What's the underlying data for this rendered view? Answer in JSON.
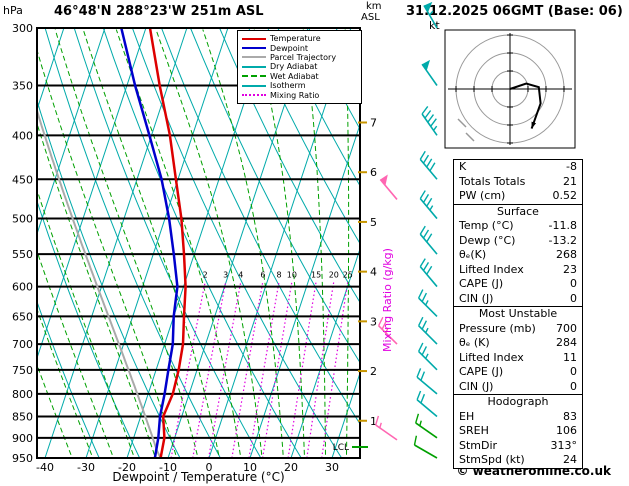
{
  "header": {
    "title": "46°48'N 288°23'W 251m ASL",
    "datetime": "31.12.2025 06GMT (Base: 06)",
    "pressure_unit": "hPa",
    "altitude_unit_line1": "km",
    "altitude_unit_line2": "ASL",
    "hodograph_unit": "kt"
  },
  "footer": {
    "copyright": "© weatheronline.co.uk"
  },
  "legend": {
    "items": [
      {
        "label": "Temperature",
        "color": "#DD0000",
        "style": "solid"
      },
      {
        "label": "Dewpoint",
        "color": "#0000CC",
        "style": "solid"
      },
      {
        "label": "Parcel Trajectory",
        "color": "#AAAAAA",
        "style": "solid"
      },
      {
        "label": "Dry Adiabat",
        "color": "#00AAAA",
        "style": "solid"
      },
      {
        "label": "Wet Adiabat",
        "color": "#00A000",
        "style": "dashed"
      },
      {
        "label": "Isotherm",
        "color": "#00AAAA",
        "style": "solid"
      },
      {
        "label": "Mixing Ratio",
        "color": "#E000E0",
        "style": "dotted"
      }
    ]
  },
  "stats_table": {
    "top_rows": [
      {
        "label": "K",
        "value": "-8"
      },
      {
        "label": "Totals Totals",
        "value": "21"
      },
      {
        "label": "PW (cm)",
        "value": "0.52"
      }
    ],
    "sections": [
      {
        "header": "Surface",
        "rows": [
          {
            "label": "Temp (°C)",
            "value": "-11.8"
          },
          {
            "label": "Dewp (°C)",
            "value": "-13.2"
          },
          {
            "label": "θₑ(K)",
            "value": "268"
          },
          {
            "label": "Lifted Index",
            "value": "23"
          },
          {
            "label": "CAPE (J)",
            "value": "0"
          },
          {
            "label": "CIN (J)",
            "value": "0"
          }
        ]
      },
      {
        "header": "Most Unstable",
        "rows": [
          {
            "label": "Pressure (mb)",
            "value": "700"
          },
          {
            "label": "θₑ (K)",
            "value": "284"
          },
          {
            "label": "Lifted Index",
            "value": "11"
          },
          {
            "label": "CAPE (J)",
            "value": "0"
          },
          {
            "label": "CIN (J)",
            "value": "0"
          }
        ]
      },
      {
        "header": "Hodograph",
        "rows": [
          {
            "label": "EH",
            "value": "83"
          },
          {
            "label": "SREH",
            "value": "106"
          },
          {
            "label": "StmDir",
            "value": "313°"
          },
          {
            "label": "StmSpd (kt)",
            "value": "24"
          }
        ]
      }
    ]
  },
  "chart_data": {
    "type": "skewt",
    "xlabel": "Dewpoint / Temperature (°C)",
    "mixing_ratio_axis_label": "Mixing Ratio (g/kg)",
    "lcl_label": "LCL",
    "y_scale": "log-pressure",
    "pressure_range_hpa": [
      300,
      950
    ],
    "temp_axis_range_c": [
      -40,
      30
    ],
    "station_elevation_km": 0.251,
    "pressure_ticks_hpa": [
      300,
      350,
      400,
      450,
      500,
      550,
      600,
      650,
      700,
      750,
      800,
      850,
      900,
      950
    ],
    "temp_ticks_c": [
      -40,
      -30,
      -20,
      -10,
      0,
      10,
      20,
      30
    ],
    "km_ticks": [
      7,
      6,
      5,
      4,
      3,
      2,
      1
    ],
    "mixing_ratio_lines_gkg": [
      2,
      3,
      4,
      6,
      8,
      10,
      15,
      20,
      25
    ],
    "colors": {
      "temperature": "#DD0000",
      "dewpoint": "#0000CC",
      "parcel": "#AAAAAA",
      "dry_adiabat": "#00AAAA",
      "wet_adiabat": "#00A000",
      "isotherm": "#00AAAA",
      "mixing_ratio": "#E000E0",
      "km_tick": "#C89600",
      "lcl_tick": "#00A000"
    },
    "sounding": {
      "pressure_hpa": [
        950,
        900,
        850,
        800,
        750,
        700,
        650,
        600,
        550,
        500,
        450,
        400,
        350,
        300
      ],
      "temperature_c": [
        -11.8,
        -12.5,
        -14.5,
        -14.0,
        -14.5,
        -15.5,
        -17.5,
        -19.5,
        -22.5,
        -26.0,
        -30.5,
        -35.5,
        -42.0,
        -49.0
      ],
      "dewpoint_c": [
        -13.2,
        -14.0,
        -15.3,
        -16.0,
        -17.0,
        -18.0,
        -20.0,
        -21.5,
        -25.0,
        -29.0,
        -34.0,
        -40.5,
        -48.0,
        -56.0
      ]
    },
    "parcel": {
      "surface_temp_c": -11.8,
      "surface_dewp_c": -13.2,
      "lcl_hpa": 930
    },
    "winds": [
      {
        "p": 950,
        "dir": 300,
        "spd": 10,
        "color": "#00A000"
      },
      {
        "p": 900,
        "dir": 305,
        "spd": 15,
        "color": "#00A000"
      },
      {
        "p": 850,
        "dir": 310,
        "spd": 20,
        "color": "#00AAAA"
      },
      {
        "p": 800,
        "dir": 310,
        "spd": 20,
        "color": "#00AAAA"
      },
      {
        "p": 750,
        "dir": 315,
        "spd": 25,
        "color": "#00AAAA"
      },
      {
        "p": 700,
        "dir": 315,
        "spd": 25,
        "color": "#00AAAA"
      },
      {
        "p": 650,
        "dir": 315,
        "spd": 25,
        "color": "#00AAAA"
      },
      {
        "p": 600,
        "dir": 320,
        "spd": 30,
        "color": "#00AAAA"
      },
      {
        "p": 550,
        "dir": 320,
        "spd": 30,
        "color": "#00AAAA"
      },
      {
        "p": 500,
        "dir": 320,
        "spd": 35,
        "color": "#00AAAA"
      },
      {
        "p": 450,
        "dir": 320,
        "spd": 40,
        "color": "#00AAAA"
      },
      {
        "p": 400,
        "dir": 325,
        "spd": 45,
        "color": "#00AAAA"
      },
      {
        "p": 350,
        "dir": 325,
        "spd": 50,
        "color": "#00AAAA"
      },
      {
        "p": 300,
        "dir": 330,
        "spd": 55,
        "color": "#00AAAA"
      }
    ],
    "special_winds": [
      {
        "p": 475,
        "dir": 320,
        "spd": 50,
        "color": "#FF66B2"
      },
      {
        "p": 700,
        "dir": 315,
        "spd": 25,
        "color": "#FF66B2"
      },
      {
        "p": 905,
        "dir": 305,
        "spd": 15,
        "color": "#FF66B2"
      }
    ],
    "hodograph": {
      "unit": "kt",
      "rings_kt": [
        10,
        20,
        30
      ],
      "trace_kt": [
        [
          0,
          0
        ],
        [
          9,
          3
        ],
        [
          16,
          1
        ],
        [
          17,
          -8
        ],
        [
          12,
          -22
        ]
      ]
    }
  }
}
